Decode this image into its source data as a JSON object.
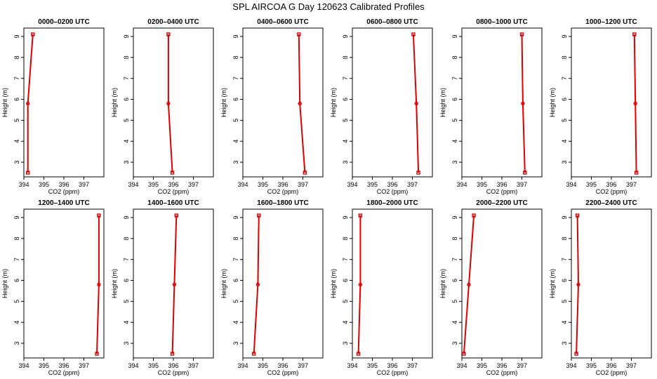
{
  "title": "SPL AIRCOA G  Day 120623  Calibrated Profiles",
  "colors": {
    "series": "#dd0000",
    "axis": "#000000"
  },
  "chart_data": [
    {
      "type": "line",
      "title": "0000–0200 UTC",
      "xlabel": "CO2 (ppm)",
      "ylabel": "Height (m)",
      "xlim": [
        394,
        398
      ],
      "ylim": [
        2.3,
        9.4
      ],
      "xticks": [
        394,
        395,
        396,
        397
      ],
      "yticks": [
        3,
        4,
        5,
        6,
        7,
        8,
        9
      ],
      "grid": false,
      "points": [
        {
          "x": 394.2,
          "y": 2.5
        },
        {
          "x": 394.2,
          "y": 5.8
        },
        {
          "x": 394.45,
          "y": 9.1
        }
      ]
    },
    {
      "type": "line",
      "title": "0200–0400 UTC",
      "xlabel": "CO2 (ppm)",
      "ylabel": "Height (m)",
      "xlim": [
        394,
        398
      ],
      "ylim": [
        2.3,
        9.4
      ],
      "xticks": [
        394,
        395,
        396,
        397
      ],
      "yticks": [
        3,
        4,
        5,
        6,
        7,
        8,
        9
      ],
      "grid": false,
      "points": [
        {
          "x": 395.95,
          "y": 2.5
        },
        {
          "x": 395.75,
          "y": 5.8
        },
        {
          "x": 395.75,
          "y": 9.1
        }
      ]
    },
    {
      "type": "line",
      "title": "0400–0600 UTC",
      "xlabel": "CO2 (ppm)",
      "ylabel": "Height (m)",
      "xlim": [
        394,
        398
      ],
      "ylim": [
        2.3,
        9.4
      ],
      "xticks": [
        394,
        395,
        396,
        397
      ],
      "yticks": [
        3,
        4,
        5,
        6,
        7,
        8,
        9
      ],
      "grid": false,
      "points": [
        {
          "x": 397.1,
          "y": 2.5
        },
        {
          "x": 396.85,
          "y": 5.8
        },
        {
          "x": 396.8,
          "y": 9.1
        }
      ]
    },
    {
      "type": "line",
      "title": "0600–0800 UTC",
      "xlabel": "CO2 (ppm)",
      "ylabel": "Height (m)",
      "xlim": [
        394,
        398
      ],
      "ylim": [
        2.3,
        9.4
      ],
      "xticks": [
        394,
        395,
        396,
        397
      ],
      "yticks": [
        3,
        4,
        5,
        6,
        7,
        8,
        9
      ],
      "grid": false,
      "points": [
        {
          "x": 397.3,
          "y": 2.5
        },
        {
          "x": 397.2,
          "y": 5.8
        },
        {
          "x": 397.05,
          "y": 9.1
        }
      ]
    },
    {
      "type": "line",
      "title": "0800–1000 UTC",
      "xlabel": "CO2 (ppm)",
      "ylabel": "Height (m)",
      "xlim": [
        394,
        398
      ],
      "ylim": [
        2.3,
        9.4
      ],
      "xticks": [
        394,
        395,
        396,
        397
      ],
      "yticks": [
        3,
        4,
        5,
        6,
        7,
        8,
        9
      ],
      "grid": false,
      "points": [
        {
          "x": 397.15,
          "y": 2.5
        },
        {
          "x": 397.05,
          "y": 5.8
        },
        {
          "x": 397.0,
          "y": 9.1
        }
      ]
    },
    {
      "type": "line",
      "title": "1000–1200 UTC",
      "xlabel": "CO2 (ppm)",
      "ylabel": "Height (m)",
      "xlim": [
        394,
        398
      ],
      "ylim": [
        2.3,
        9.4
      ],
      "xticks": [
        394,
        395,
        396,
        397
      ],
      "yticks": [
        3,
        4,
        5,
        6,
        7,
        8,
        9
      ],
      "grid": false,
      "points": [
        {
          "x": 397.25,
          "y": 2.5
        },
        {
          "x": 397.2,
          "y": 5.8
        },
        {
          "x": 397.15,
          "y": 9.1
        }
      ]
    },
    {
      "type": "line",
      "title": "1200–1400 UTC",
      "xlabel": "CO2 (ppm)",
      "ylabel": "Height (m)",
      "xlim": [
        394,
        398
      ],
      "ylim": [
        2.3,
        9.4
      ],
      "xticks": [
        394,
        395,
        396,
        397
      ],
      "yticks": [
        3,
        4,
        5,
        6,
        7,
        8,
        9
      ],
      "grid": false,
      "points": [
        {
          "x": 397.65,
          "y": 2.5
        },
        {
          "x": 397.75,
          "y": 5.8
        },
        {
          "x": 397.75,
          "y": 9.1
        }
      ]
    },
    {
      "type": "line",
      "title": "1400–1600 UTC",
      "xlabel": "CO2 (ppm)",
      "ylabel": "Height (m)",
      "xlim": [
        394,
        398
      ],
      "ylim": [
        2.3,
        9.4
      ],
      "xticks": [
        394,
        395,
        396,
        397
      ],
      "yticks": [
        3,
        4,
        5,
        6,
        7,
        8,
        9
      ],
      "grid": false,
      "points": [
        {
          "x": 395.95,
          "y": 2.5
        },
        {
          "x": 396.05,
          "y": 5.8
        },
        {
          "x": 396.15,
          "y": 9.1
        }
      ]
    },
    {
      "type": "line",
      "title": "1600–1800 UTC",
      "xlabel": "CO2 (ppm)",
      "ylabel": "Height (m)",
      "xlim": [
        394,
        398
      ],
      "ylim": [
        2.3,
        9.4
      ],
      "xticks": [
        394,
        395,
        396,
        397
      ],
      "yticks": [
        3,
        4,
        5,
        6,
        7,
        8,
        9
      ],
      "grid": false,
      "points": [
        {
          "x": 394.55,
          "y": 2.5
        },
        {
          "x": 394.75,
          "y": 5.8
        },
        {
          "x": 394.8,
          "y": 9.1
        }
      ]
    },
    {
      "type": "line",
      "title": "1800–2000 UTC",
      "xlabel": "CO2 (ppm)",
      "ylabel": "Height (m)",
      "xlim": [
        394,
        398
      ],
      "ylim": [
        2.3,
        9.4
      ],
      "xticks": [
        394,
        395,
        396,
        397
      ],
      "yticks": [
        3,
        4,
        5,
        6,
        7,
        8,
        9
      ],
      "grid": false,
      "points": [
        {
          "x": 394.3,
          "y": 2.5
        },
        {
          "x": 394.4,
          "y": 5.8
        },
        {
          "x": 394.4,
          "y": 9.1
        }
      ]
    },
    {
      "type": "line",
      "title": "2000–2200 UTC",
      "xlabel": "CO2 (ppm)",
      "ylabel": "Height (m)",
      "xlim": [
        394,
        398
      ],
      "ylim": [
        2.3,
        9.4
      ],
      "xticks": [
        394,
        395,
        396,
        397
      ],
      "yticks": [
        3,
        4,
        5,
        6,
        7,
        8,
        9
      ],
      "grid": false,
      "points": [
        {
          "x": 394.1,
          "y": 2.5
        },
        {
          "x": 394.35,
          "y": 5.8
        },
        {
          "x": 394.6,
          "y": 9.1
        }
      ]
    },
    {
      "type": "line",
      "title": "2200–2400 UTC",
      "xlabel": "CO2 (ppm)",
      "ylabel": "Height (m)",
      "xlim": [
        394,
        398
      ],
      "ylim": [
        2.3,
        9.4
      ],
      "xticks": [
        394,
        395,
        396,
        397
      ],
      "yticks": [
        3,
        4,
        5,
        6,
        7,
        8,
        9
      ],
      "grid": false,
      "points": [
        {
          "x": 394.25,
          "y": 2.5
        },
        {
          "x": 394.35,
          "y": 5.8
        },
        {
          "x": 394.3,
          "y": 9.1
        }
      ]
    }
  ]
}
